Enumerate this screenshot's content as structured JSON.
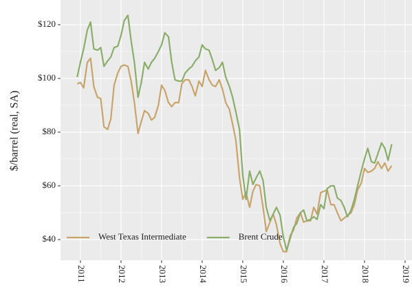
{
  "chart_data": {
    "type": "line",
    "y_label": "$/barrel (real, SA)",
    "x": [
      2010.92,
      2011.0,
      2011.08,
      2011.17,
      2011.25,
      2011.33,
      2011.42,
      2011.5,
      2011.58,
      2011.67,
      2011.75,
      2011.83,
      2011.92,
      2012.0,
      2012.08,
      2012.17,
      2012.25,
      2012.33,
      2012.42,
      2012.5,
      2012.58,
      2012.67,
      2012.75,
      2012.83,
      2012.92,
      2013.0,
      2013.08,
      2013.17,
      2013.25,
      2013.33,
      2013.42,
      2013.5,
      2013.58,
      2013.67,
      2013.75,
      2013.83,
      2013.92,
      2014.0,
      2014.08,
      2014.17,
      2014.25,
      2014.33,
      2014.42,
      2014.5,
      2014.58,
      2014.67,
      2014.75,
      2014.83,
      2014.92,
      2015.0,
      2015.08,
      2015.17,
      2015.25,
      2015.33,
      2015.42,
      2015.5,
      2015.58,
      2015.67,
      2015.75,
      2015.83,
      2015.92,
      2016.0,
      2016.08,
      2016.17,
      2016.25,
      2016.33,
      2016.42,
      2016.5,
      2016.58,
      2016.67,
      2016.75,
      2016.83,
      2016.92,
      2017.0,
      2017.08,
      2017.17,
      2017.25,
      2017.33,
      2017.42,
      2017.5,
      2017.58,
      2017.67,
      2017.75,
      2017.83,
      2017.92,
      2018.0,
      2018.08,
      2018.17,
      2018.25,
      2018.33,
      2018.42,
      2018.5,
      2018.58,
      2018.67
    ],
    "series": [
      {
        "name": "West Texas Intermediate",
        "color": "#c9a46a",
        "values": [
          98,
          98.5,
          96.5,
          106,
          107.5,
          97,
          93,
          92.5,
          82,
          81,
          85,
          97.5,
          102,
          104.5,
          105,
          104.5,
          99,
          91,
          79.5,
          84,
          88,
          87,
          84.5,
          85.5,
          90,
          97.5,
          95.5,
          91,
          89.5,
          91,
          91,
          98,
          99.5,
          99.5,
          97,
          93.5,
          99,
          97,
          103,
          99.5,
          97.5,
          97,
          99.5,
          96,
          91,
          88.5,
          83,
          77,
          63,
          55,
          57.5,
          52,
          58,
          60.5,
          60,
          52,
          43,
          46.5,
          49.5,
          45.5,
          38.5,
          35.5,
          35.5,
          41.5,
          43.5,
          48,
          50,
          46.5,
          47,
          47,
          52,
          49.5,
          57.5,
          58,
          58.5,
          53,
          53,
          50,
          47,
          48,
          49,
          50,
          53,
          58.5,
          61,
          66.5,
          65,
          65.5,
          66.5,
          69,
          66.5,
          68.5,
          65.5,
          67.5
        ]
      },
      {
        "name": "Brent Crude",
        "color": "#8aad6a",
        "values": [
          100.5,
          106,
          111,
          118,
          121,
          111,
          110.5,
          111.5,
          104.5,
          106.5,
          108,
          111.5,
          112,
          116,
          121.5,
          123.5,
          114,
          106,
          93,
          98.5,
          106,
          103.5,
          106,
          107.5,
          110,
          112.5,
          117,
          115.5,
          106,
          99.5,
          99,
          99,
          102,
          103.5,
          104.5,
          106.5,
          108,
          112.5,
          111,
          110.5,
          107,
          103,
          104,
          106,
          100.5,
          97,
          93,
          87.5,
          81,
          64,
          55,
          65.5,
          60.5,
          63,
          65.5,
          62,
          52,
          47,
          49.5,
          52,
          49,
          41,
          36,
          40.5,
          44.5,
          46,
          50,
          51,
          47,
          47.5,
          48.5,
          47.5,
          53,
          51.5,
          59,
          60,
          60,
          55.5,
          54.5,
          52,
          48.5,
          51,
          55,
          60,
          65.5,
          70,
          74,
          69,
          68.5,
          72,
          76,
          74,
          69.5,
          75.5
        ]
      }
    ],
    "xlim": [
      2010.51,
      2019.17
    ],
    "xticks": [
      2011,
      2012,
      2013,
      2014,
      2015,
      2016,
      2017,
      2018,
      2019
    ],
    "ylim": [
      32.3,
      129.2
    ],
    "yticks": [
      {
        "value": 40,
        "label": "$40"
      },
      {
        "value": 60,
        "label": "$60"
      },
      {
        "value": 80,
        "label": "$80"
      },
      {
        "value": 100,
        "label": "$100"
      },
      {
        "value": 120,
        "label": "$120"
      }
    ],
    "grid": true,
    "legend": "bottom"
  }
}
